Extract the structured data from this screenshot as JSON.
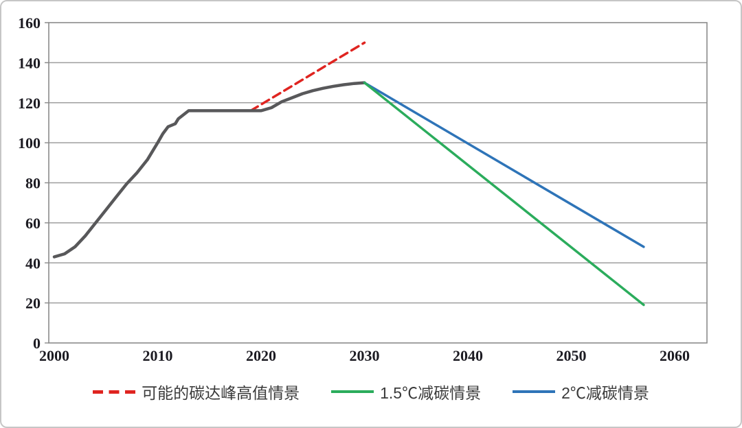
{
  "chart_data": {
    "type": "line",
    "title": "",
    "xlabel": "",
    "ylabel": "",
    "xlim": [
      2000,
      2063
    ],
    "ylim": [
      0,
      160
    ],
    "x_ticks": [
      2000,
      2010,
      2020,
      2030,
      2040,
      2050,
      2060
    ],
    "y_ticks": [
      0,
      20,
      40,
      60,
      80,
      100,
      120,
      140,
      160
    ],
    "grid": "horizontal",
    "legend_position": "bottom",
    "colors": {
      "historical": "#58585a",
      "peak_red": "#df2420",
      "green_15c": "#2bac5c",
      "blue_2c": "#2e74b8",
      "grid": "#9e9e9e",
      "axis": "#8a8a8a",
      "tick_text": "#1c1b22",
      "legend_text": "#3a3a3a",
      "canvas_border": "#c6c6c6"
    },
    "series": [
      {
        "id": "peak-high-scenario",
        "label": "可能的碳达峰高值情景",
        "color": "#df2420",
        "width": 3.5,
        "dash": "12 7",
        "points": [
          [
            2019,
            116
          ],
          [
            2030,
            150
          ]
        ]
      },
      {
        "id": "historical-emissions",
        "label": "",
        "color": "#58585a",
        "width": 4.5,
        "dash": "",
        "points": [
          [
            2000,
            43
          ],
          [
            2001,
            44.5
          ],
          [
            2002,
            48
          ],
          [
            2003,
            53.5
          ],
          [
            2004,
            60
          ],
          [
            2005,
            66.5
          ],
          [
            2006,
            73
          ],
          [
            2007,
            79.5
          ],
          [
            2008,
            85
          ],
          [
            2009,
            91.5
          ],
          [
            2010,
            100
          ],
          [
            2010.5,
            104.5
          ],
          [
            2011,
            108
          ],
          [
            2011.7,
            109.5
          ],
          [
            2012,
            112
          ],
          [
            2013,
            116
          ],
          [
            2014,
            116
          ],
          [
            2015,
            116
          ],
          [
            2016,
            116
          ],
          [
            2017,
            116
          ],
          [
            2018,
            116
          ],
          [
            2019,
            116
          ],
          [
            2020,
            116
          ],
          [
            2021,
            117.5
          ],
          [
            2022,
            120.5
          ],
          [
            2023,
            122.5
          ],
          [
            2024,
            124.5
          ],
          [
            2025,
            126
          ],
          [
            2026,
            127.2
          ],
          [
            2027,
            128.2
          ],
          [
            2028,
            129
          ],
          [
            2029,
            129.6
          ],
          [
            2030,
            130
          ]
        ]
      },
      {
        "id": "2c-scenario",
        "label": "2℃减碳情景",
        "color": "#2e74b8",
        "width": 3.5,
        "dash": "",
        "points": [
          [
            2030,
            130
          ],
          [
            2057,
            48
          ]
        ]
      },
      {
        "id": "1p5c-scenario",
        "label": "1.5℃减碳情景",
        "color": "#2bac5c",
        "width": 3.5,
        "dash": "",
        "points": [
          [
            2030,
            130
          ],
          [
            2057,
            19
          ]
        ]
      }
    ],
    "legend": [
      {
        "label": "可能的碳达峰高值情景",
        "color": "#df2420",
        "dashed": true
      },
      {
        "label": "1.5℃减碳情景",
        "color": "#2bac5c",
        "dashed": false
      },
      {
        "label": "2℃减碳情景",
        "color": "#2e74b8",
        "dashed": false
      }
    ]
  }
}
